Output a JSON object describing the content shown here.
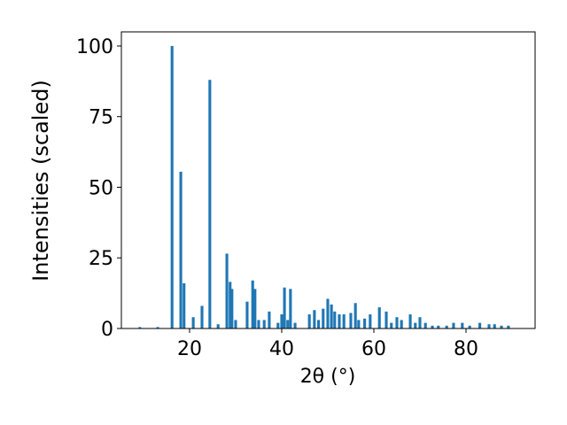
{
  "chart_data": {
    "type": "bar",
    "xlabel": "2θ (°)",
    "ylabel": "Intensities (scaled)",
    "x": [
      9.2,
      13.1,
      16.2,
      18.1,
      18.8,
      20.8,
      22.7,
      24.4,
      26.2,
      28.1,
      28.8,
      29.2,
      30,
      32.5,
      33.7,
      34.2,
      35,
      36.2,
      37.3,
      39.2,
      40,
      40.6,
      41.3,
      41.9,
      42.9,
      46,
      47.1,
      48,
      49,
      50,
      50.8,
      51.5,
      52.5,
      53.5,
      55,
      56,
      56.7,
      58,
      59.2,
      61.2,
      62.7,
      63.8,
      65,
      66,
      67.9,
      69,
      70,
      71.2,
      72.7,
      74,
      75.8,
      77.3,
      79.2,
      80.8,
      83,
      85,
      86.2,
      87.7,
      89.2
    ],
    "values": [
      0.5,
      0.5,
      100,
      55.5,
      16,
      4,
      8,
      88,
      1.5,
      26.5,
      16.5,
      14,
      3,
      9.5,
      17,
      14,
      3,
      3,
      6,
      2,
      5,
      14.5,
      3,
      14,
      2,
      5,
      6.5,
      3,
      7,
      10.5,
      8.5,
      6,
      5,
      5,
      5.5,
      9,
      3,
      3.5,
      5,
      7.5,
      6,
      2,
      4,
      3,
      5,
      2,
      4,
      2,
      1,
      1,
      1,
      2,
      2,
      1,
      2,
      1.5,
      1.5,
      1,
      1
    ],
    "color": "#1f77b4",
    "xlim": [
      5.2,
      95
    ],
    "ylim": [
      0,
      105
    ],
    "xticks": [
      20,
      40,
      60,
      80
    ],
    "yticks": [
      0,
      25,
      50,
      75,
      100
    ]
  }
}
